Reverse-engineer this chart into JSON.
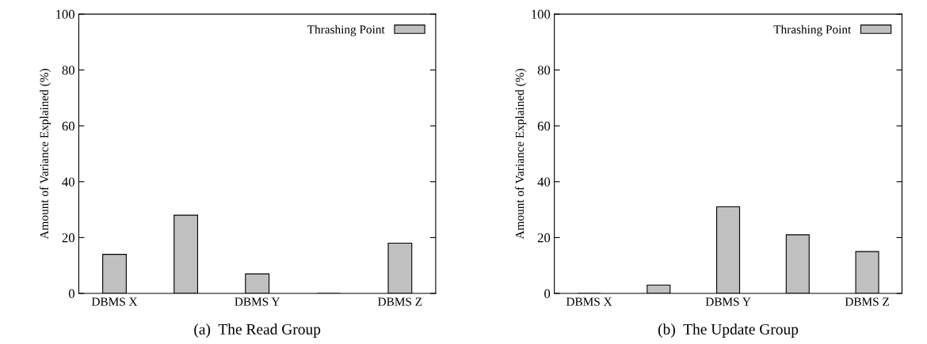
{
  "chart_data": [
    {
      "type": "bar",
      "title": "(a)  The Read Group",
      "ylabel": "Amount of Variance Explained (%)",
      "categories": [
        "DBMS X",
        null,
        "DBMS Y",
        null,
        "DBMS Z"
      ],
      "series": [
        {
          "name": "Thrashing Point",
          "color": "#c0c0c0",
          "values": [
            14,
            28,
            7,
            0,
            18
          ]
        }
      ],
      "ylim": [
        0,
        100
      ],
      "yticks": [
        0,
        20,
        40,
        60,
        80,
        100
      ],
      "legend": "top right",
      "grid": false
    },
    {
      "type": "bar",
      "title": "(b)  The Update Group",
      "ylabel": "Amount of Variance Explained (%)",
      "categories": [
        "DBMS X",
        null,
        "DBMS Y",
        null,
        "DBMS Z"
      ],
      "series": [
        {
          "name": "Thrashing Point",
          "color": "#c0c0c0",
          "values": [
            0,
            3,
            31,
            21,
            15
          ]
        }
      ],
      "ylim": [
        0,
        100
      ],
      "yticks": [
        0,
        20,
        40,
        60,
        80,
        100
      ],
      "legend": "top right",
      "grid": false
    }
  ]
}
